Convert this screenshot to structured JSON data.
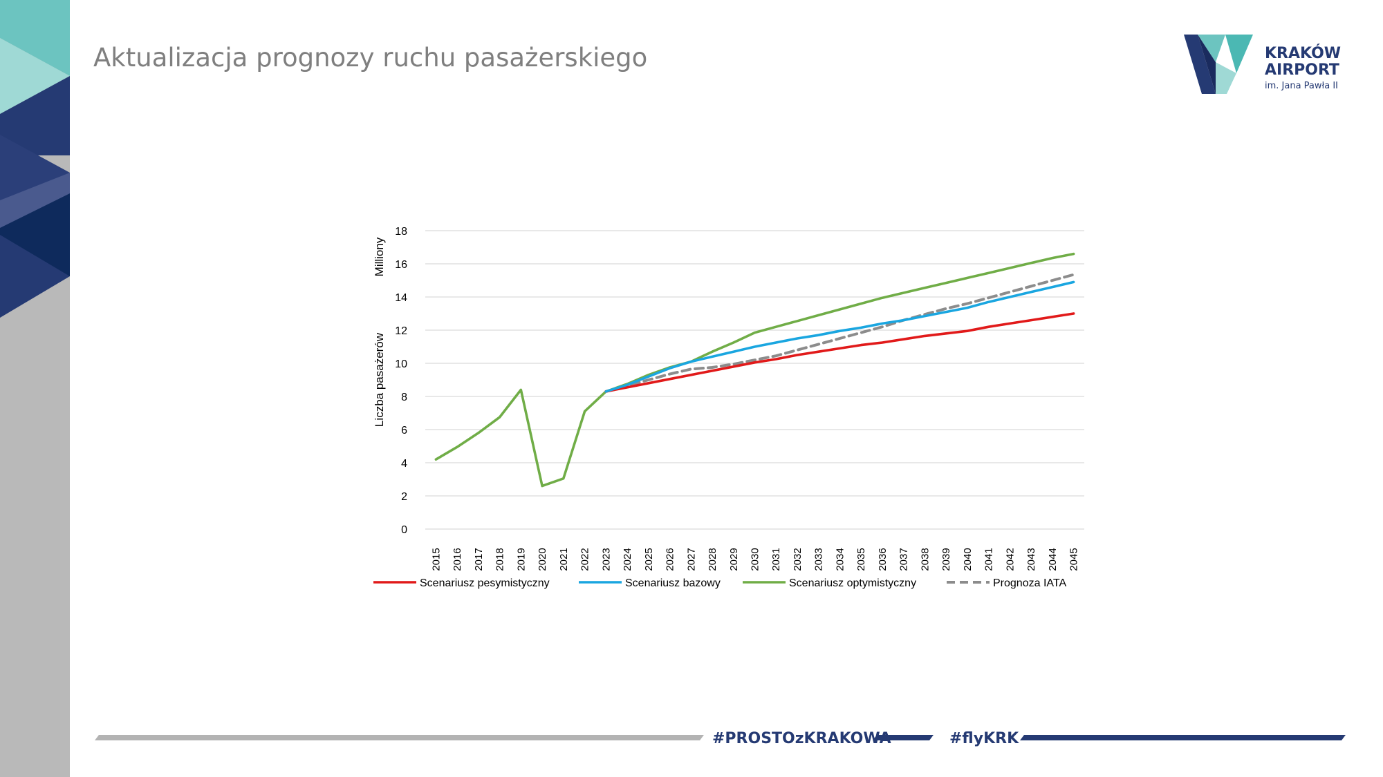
{
  "page": {
    "title": "Aktualizacja prognozy ruchu pasażerskiego"
  },
  "logo": {
    "line1": "KRAKÓW",
    "line2": "AIRPORT",
    "line3": "im. Jana Pawła II"
  },
  "footer": {
    "hashtag1": "#PROSTOzKRAKOWA",
    "hashtag2": "#flyKRK"
  },
  "colors": {
    "title_gray": "#7f7f7f",
    "navy": "#253a73",
    "teal": "#6cc4c0",
    "strip_gray": "#b9b9b9"
  },
  "chart_data": {
    "type": "line",
    "ylabel_top": "Milliony",
    "ylabel": "Liczba pasażerów",
    "ylim": [
      0,
      18
    ],
    "yticks": [
      0,
      2,
      4,
      6,
      8,
      10,
      12,
      14,
      16,
      18
    ],
    "grid": true,
    "legend_position": "bottom",
    "x": [
      2015,
      2016,
      2017,
      2018,
      2019,
      2020,
      2021,
      2022,
      2023,
      2024,
      2025,
      2026,
      2027,
      2028,
      2029,
      2030,
      2031,
      2032,
      2033,
      2034,
      2035,
      2036,
      2037,
      2038,
      2039,
      2040,
      2041,
      2042,
      2043,
      2044,
      2045
    ],
    "series": [
      {
        "name": "Scenariusz pesymistyczny",
        "color": "#e11a1a",
        "dash": false,
        "x": [
          2023,
          2024,
          2025,
          2026,
          2027,
          2028,
          2029,
          2030,
          2031,
          2032,
          2033,
          2034,
          2035,
          2036,
          2037,
          2038,
          2039,
          2040,
          2041,
          2042,
          2043,
          2044,
          2045
        ],
        "values": [
          8.3,
          8.55,
          8.8,
          9.05,
          9.3,
          9.55,
          9.8,
          10.05,
          10.25,
          10.5,
          10.7,
          10.9,
          11.1,
          11.25,
          11.45,
          11.65,
          11.8,
          11.95,
          12.2,
          12.4,
          12.6,
          12.8,
          13.0
        ]
      },
      {
        "name": "Scenariusz bazowy",
        "color": "#1aa6e0",
        "dash": false,
        "x": [
          2023,
          2024,
          2025,
          2026,
          2027,
          2028,
          2029,
          2030,
          2031,
          2032,
          2033,
          2034,
          2035,
          2036,
          2037,
          2038,
          2039,
          2040,
          2041,
          2042,
          2043,
          2044,
          2045
        ],
        "values": [
          8.3,
          8.7,
          9.2,
          9.7,
          10.1,
          10.4,
          10.7,
          11.0,
          11.25,
          11.5,
          11.7,
          11.95,
          12.15,
          12.4,
          12.6,
          12.85,
          13.1,
          13.35,
          13.7,
          14.0,
          14.3,
          14.6,
          14.9
        ]
      },
      {
        "name": "Scenariusz optymistyczny",
        "color": "#70ad47",
        "dash": false,
        "x": [
          2015,
          2016,
          2017,
          2018,
          2019,
          2020,
          2021,
          2022,
          2023,
          2024,
          2025,
          2026,
          2027,
          2028,
          2029,
          2030,
          2031,
          2032,
          2033,
          2034,
          2035,
          2036,
          2037,
          2038,
          2039,
          2040,
          2041,
          2042,
          2043,
          2044,
          2045
        ],
        "values": [
          4.2,
          4.95,
          5.8,
          6.75,
          8.4,
          2.6,
          3.05,
          7.1,
          8.3,
          8.75,
          9.3,
          9.75,
          10.1,
          10.7,
          11.25,
          11.85,
          12.2,
          12.55,
          12.9,
          13.25,
          13.6,
          13.95,
          14.25,
          14.55,
          14.85,
          15.15,
          15.45,
          15.75,
          16.05,
          16.35,
          16.6
        ]
      },
      {
        "name": "Prognoza IATA",
        "color": "#8c8c8c",
        "dash": true,
        "x": [
          2023,
          2024,
          2025,
          2026,
          2027,
          2028,
          2029,
          2030,
          2031,
          2032,
          2033,
          2034,
          2035,
          2036,
          2037,
          2038,
          2039,
          2040,
          2041,
          2042,
          2043,
          2044,
          2045
        ],
        "values": [
          8.3,
          8.65,
          9.0,
          9.35,
          9.65,
          9.75,
          9.95,
          10.2,
          10.45,
          10.8,
          11.15,
          11.5,
          11.85,
          12.2,
          12.6,
          12.95,
          13.3,
          13.6,
          13.95,
          14.3,
          14.65,
          15.0,
          15.35
        ]
      }
    ]
  }
}
